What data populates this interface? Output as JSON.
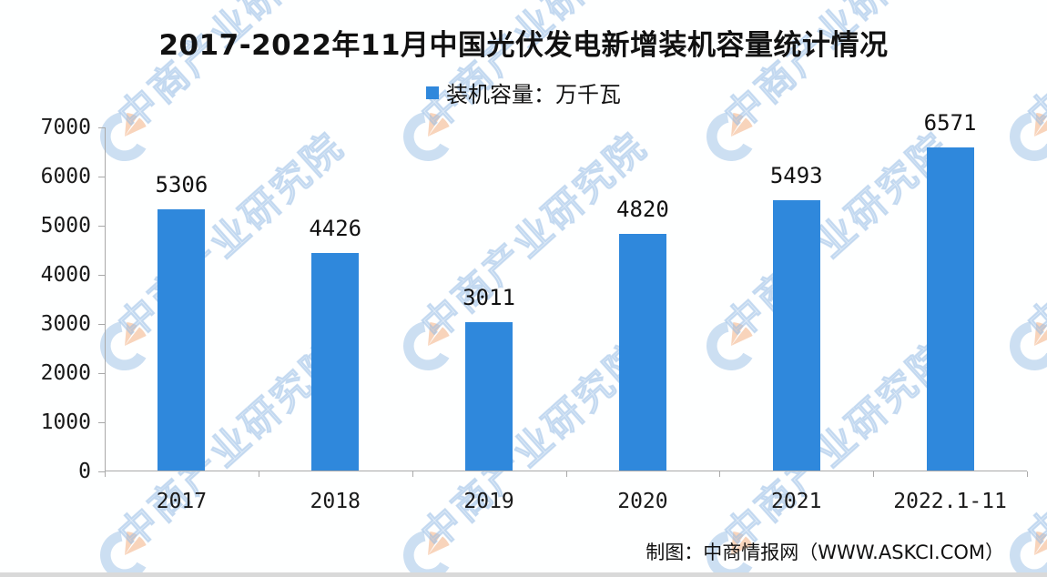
{
  "title": "2017-2022年11月中国光伏发电新增装机容量统计情况",
  "legend": {
    "label": "装机容量：万千瓦",
    "swatch_color": "#2F88DC"
  },
  "chart_data": {
    "type": "bar",
    "title": "2017-2022年11月中国光伏发电新增装机容量统计情况",
    "categories": [
      "2017",
      "2018",
      "2019",
      "2020",
      "2021",
      "2022.1-11"
    ],
    "values": [
      5306,
      4426,
      3011,
      4820,
      5493,
      6571
    ],
    "series_name": "装机容量",
    "unit": "万千瓦",
    "xlabel": "",
    "ylabel": "",
    "ylim": [
      0,
      7000
    ],
    "yticks": [
      0,
      1000,
      2000,
      3000,
      4000,
      5000,
      6000,
      7000
    ],
    "grid": false,
    "legend_position": "top",
    "bar_color": "#2F88DC",
    "data_labels": true
  },
  "footer": {
    "credit": "制图：中商情报网（WWW.ASKCI.COM）"
  },
  "watermark": {
    "text": "中商产业研究院",
    "logo": "askci-logo",
    "text_color": "#A6C7EB",
    "logo_blue": "#B9D4EE",
    "logo_orange": "#F6C4A2"
  }
}
